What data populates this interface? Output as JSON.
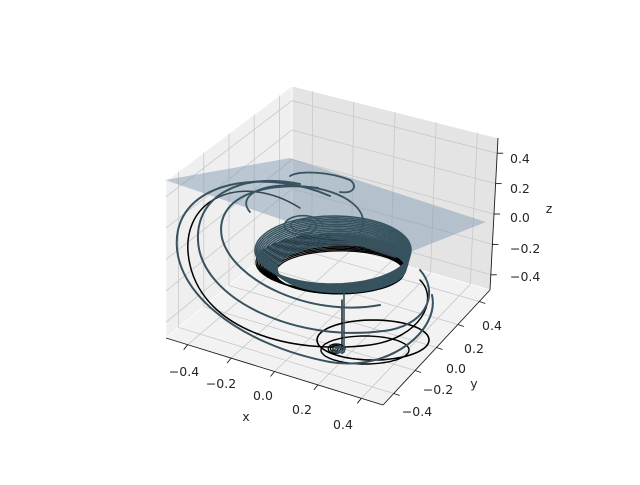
{
  "chart_data": {
    "type": "line3d",
    "title": "",
    "xlabel": "x",
    "ylabel": "y",
    "zlabel": "z",
    "xlim": [
      -0.5,
      0.5
    ],
    "ylim": [
      -0.5,
      0.5
    ],
    "zlim": [
      -0.5,
      0.5
    ],
    "x_ticks": [
      "−0.4",
      "−0.2",
      "0.0",
      "0.2",
      "0.4"
    ],
    "y_ticks": [
      "−0.4",
      "−0.2",
      "0.0",
      "0.2",
      "0.4"
    ],
    "z_ticks": [
      "−0.4",
      "−0.2",
      "0.0",
      "0.2",
      "0.4"
    ],
    "grid": true,
    "plane": {
      "z": 0.0,
      "color": "#7b97b0"
    },
    "series": [
      {
        "color": "#000000"
      },
      {
        "color": "#37535f"
      }
    ]
  }
}
